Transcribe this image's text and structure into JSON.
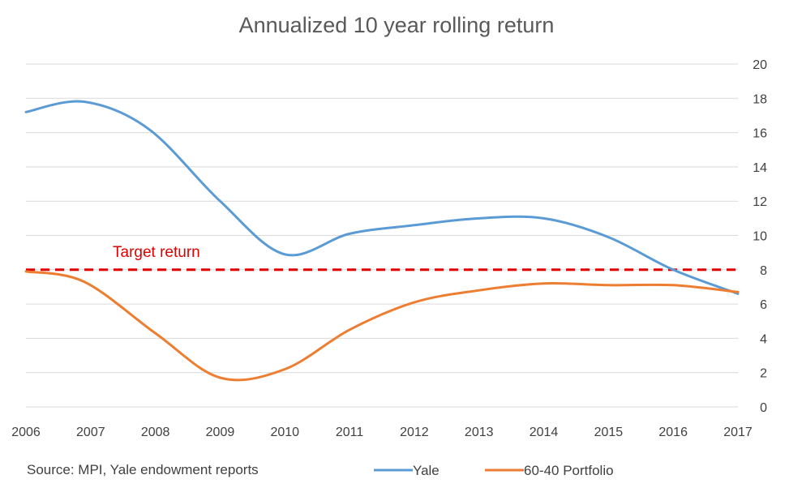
{
  "chart_data": {
    "type": "line",
    "title": "Annualized 10 year rolling return",
    "x": [
      2006,
      2007,
      2008,
      2009,
      2010,
      2011,
      2012,
      2013,
      2014,
      2015,
      2016,
      2017
    ],
    "x_ticks": [
      "2006",
      "2007",
      "2008",
      "2009",
      "2010",
      "2011",
      "2012",
      "2013",
      "2014",
      "2015",
      "2016",
      "2017"
    ],
    "xlim": [
      2006,
      2017
    ],
    "ylim": [
      0,
      20
    ],
    "y_ticks": [
      "0",
      "2",
      "4",
      "6",
      "8",
      "10",
      "12",
      "14",
      "16",
      "18",
      "20"
    ],
    "y_axis_side": "right",
    "grid": true,
    "series": [
      {
        "name": "Yale",
        "color": "#5b9bd5",
        "points": [
          [
            2006,
            17.2
          ],
          [
            2006.9,
            17.8
          ],
          [
            2007.9,
            16.2
          ],
          [
            2009,
            12.0
          ],
          [
            2010,
            8.9
          ],
          [
            2011,
            10.1
          ],
          [
            2012,
            10.6
          ],
          [
            2013,
            11.0
          ],
          [
            2014,
            11.0
          ],
          [
            2015,
            9.9
          ],
          [
            2016,
            8.0
          ],
          [
            2017,
            6.6
          ]
        ]
      },
      {
        "name": "60-40 Portfolio",
        "color": "#ed7d31",
        "points": [
          [
            2006,
            7.9
          ],
          [
            2006.9,
            7.3
          ],
          [
            2008,
            4.3
          ],
          [
            2009,
            1.7
          ],
          [
            2010,
            2.2
          ],
          [
            2011,
            4.5
          ],
          [
            2012,
            6.1
          ],
          [
            2013,
            6.8
          ],
          [
            2014,
            7.2
          ],
          [
            2015,
            7.1
          ],
          [
            2016,
            7.1
          ],
          [
            2017,
            6.7
          ]
        ]
      }
    ],
    "reference_line": {
      "label": "Target return",
      "value": 8,
      "color": "#e00000",
      "style": "dashed"
    },
    "legend": {
      "placement": "bottom"
    },
    "source_note": "Source: MPI, Yale endowment reports"
  }
}
